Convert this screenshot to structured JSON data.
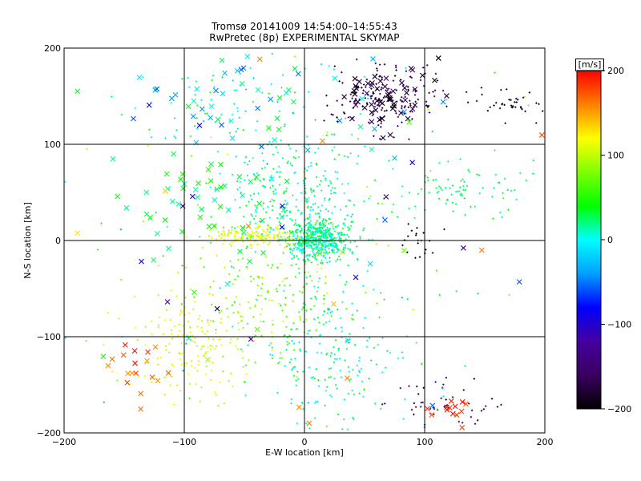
{
  "title": "Tromsø 20141009 14:54:00–14:55:43",
  "subtitle": "RwPretec (8p) EXPERIMENTAL SKYMAP",
  "chart_data": {
    "type": "scatter",
    "xlabel": "E-W location [km]",
    "ylabel": "N-S location [km]",
    "xlim": [
      -200,
      200
    ],
    "ylim": [
      -200,
      200
    ],
    "x_ticks": [
      -200,
      -100,
      0,
      100,
      200
    ],
    "y_ticks": [
      -200,
      -100,
      0,
      100,
      200
    ],
    "grid": true,
    "grid_at": {
      "x": [
        -100,
        0,
        100
      ],
      "y": [
        -100,
        0,
        100
      ]
    },
    "colorbar": {
      "unit": "[m/s]",
      "range": [
        -200,
        200
      ],
      "ticks": [
        -200,
        -100,
        0,
        100,
        200
      ],
      "colormap": [
        "#000000",
        "#3a0060",
        "#4400a0",
        "#0000ff",
        "#00a0ff",
        "#00ffff",
        "#00ff00",
        "#80ff00",
        "#ffff00",
        "#ff8000",
        "#ff0000"
      ]
    },
    "marker_kinds": [
      "plus",
      "cross"
    ],
    "clusters": [
      {
        "cx": 10,
        "cy": 0,
        "sx": 12,
        "sy": 10,
        "n": 520,
        "vmin": -10,
        "vmax": 40,
        "marker": "plus"
      },
      {
        "cx": -40,
        "cy": 5,
        "sx": 18,
        "sy": 5,
        "n": 160,
        "vmin": 90,
        "vmax": 130,
        "marker": "plus"
      },
      {
        "cx": -5,
        "cy": 45,
        "sx": 30,
        "sy": 30,
        "n": 260,
        "vmin": -10,
        "vmax": 40,
        "marker": "plus"
      },
      {
        "cx": 130,
        "cy": 50,
        "sx": 30,
        "sy": 15,
        "n": 80,
        "vmin": 10,
        "vmax": 40,
        "marker": "plus"
      },
      {
        "cx": 65,
        "cy": 150,
        "sx": 22,
        "sy": 17,
        "n": 170,
        "vmin": -200,
        "vmax": -140,
        "marker": "plus"
      },
      {
        "cx": 70,
        "cy": 150,
        "sx": 20,
        "sy": 16,
        "n": 55,
        "vmin": -200,
        "vmax": -150,
        "marker": "cross"
      },
      {
        "cx": 170,
        "cy": 145,
        "sx": 18,
        "sy": 8,
        "n": 40,
        "vmin": -200,
        "vmax": -170,
        "marker": "plus"
      },
      {
        "cx": -90,
        "cy": -110,
        "sx": 25,
        "sy": 30,
        "n": 160,
        "vmin": 90,
        "vmax": 130,
        "marker": "plus"
      },
      {
        "cx": -30,
        "cy": -60,
        "sx": 30,
        "sy": 35,
        "n": 180,
        "vmin": 50,
        "vmax": 110,
        "marker": "plus"
      },
      {
        "cx": 20,
        "cy": -120,
        "sx": 30,
        "sy": 40,
        "n": 200,
        "vmin": -10,
        "vmax": 40,
        "marker": "plus"
      },
      {
        "cx": 110,
        "cy": -170,
        "sx": 25,
        "sy": 15,
        "n": 50,
        "vmin": -200,
        "vmax": -120,
        "marker": "plus"
      },
      {
        "cx": 125,
        "cy": -175,
        "sx": 10,
        "sy": 8,
        "n": 14,
        "vmin": 170,
        "vmax": 200,
        "marker": "cross"
      },
      {
        "cx": -140,
        "cy": -130,
        "sx": 15,
        "sy": 20,
        "n": 18,
        "vmin": 150,
        "vmax": 200,
        "marker": "cross"
      },
      {
        "cx": -90,
        "cy": 40,
        "sx": 40,
        "sy": 30,
        "n": 50,
        "vmin": 10,
        "vmax": 50,
        "marker": "cross"
      },
      {
        "cx": -60,
        "cy": 140,
        "sx": 50,
        "sy": 30,
        "n": 80,
        "vmin": -20,
        "vmax": 60,
        "marker": "plus"
      },
      {
        "cx": -60,
        "cy": 140,
        "sx": 60,
        "sy": 30,
        "n": 50,
        "vmin": -60,
        "vmax": 40,
        "marker": "cross"
      },
      {
        "cx": 0,
        "cy": 0,
        "sx": 120,
        "sy": 110,
        "n": 160,
        "vmin": -40,
        "vmax": 110,
        "marker": "plus"
      },
      {
        "cx": 0,
        "cy": 0,
        "sx": 120,
        "sy": 110,
        "n": 60,
        "vmin": -200,
        "vmax": 200,
        "marker": "cross"
      },
      {
        "cx": 95,
        "cy": 0,
        "sx": 8,
        "sy": 8,
        "n": 20,
        "vmin": -200,
        "vmax": -180,
        "marker": "plus"
      }
    ]
  }
}
